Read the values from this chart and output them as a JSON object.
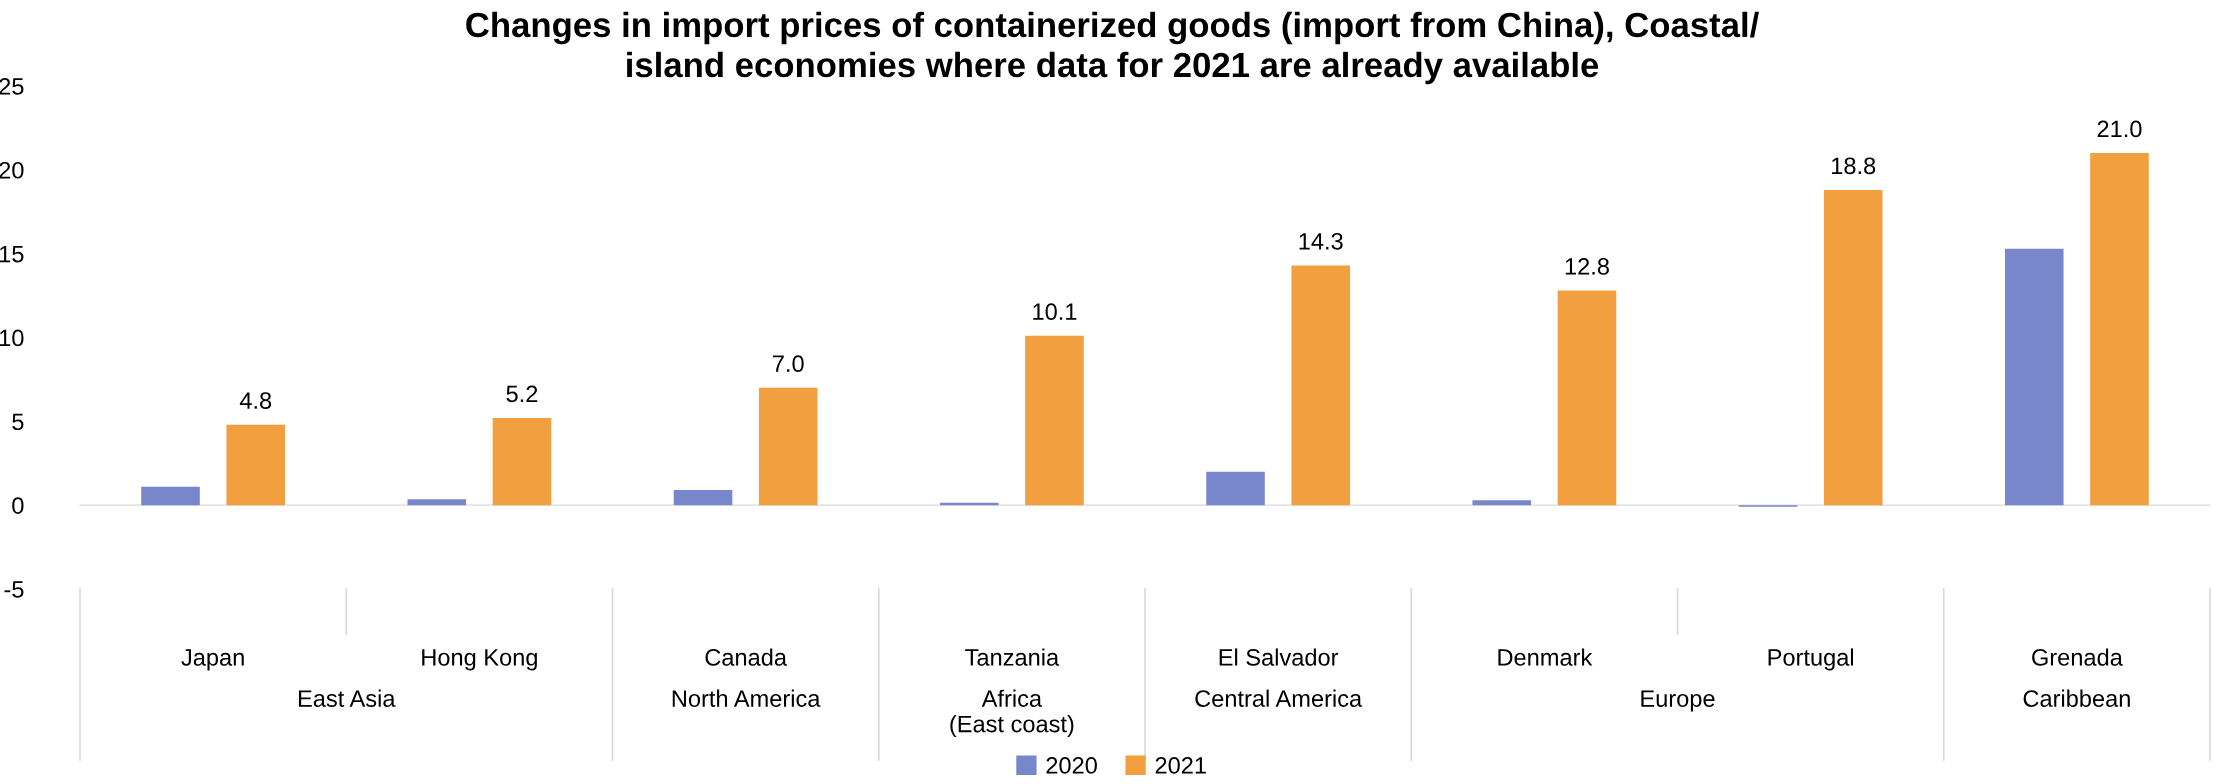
{
  "chart_data": {
    "type": "bar",
    "title": "Changes in import prices of containerized goods (import from China), Coastal/\nisland economies where data for 2021 are already available",
    "categories": [
      "Japan",
      "Hong Kong",
      "Canada",
      "Tanzania",
      "El Salvador",
      "Denmark",
      "Portugal",
      "Grenada"
    ],
    "series": [
      {
        "name": "2020",
        "color": "#7886cb",
        "values": [
          1.1,
          0.35,
          0.9,
          0.15,
          2.0,
          0.3,
          -0.1,
          15.3
        ]
      },
      {
        "name": "2021",
        "color": "#f29f3f",
        "values": [
          4.8,
          5.2,
          7.0,
          10.1,
          14.3,
          12.8,
          18.8,
          21.0
        ],
        "value_labels": [
          "4.8",
          "5.2",
          "7.0",
          "10.1",
          "14.3",
          "12.8",
          "18.8",
          "21.0"
        ]
      }
    ],
    "annotations": [
      "East Asia",
      "North America",
      "Africa\n(East coast)",
      "Central America",
      "Europe",
      "Caribbean"
    ],
    "ylim": [
      -5,
      25
    ],
    "yticks": [
      -5,
      0,
      5,
      10,
      15,
      20,
      25
    ],
    "legend": "bottom"
  }
}
